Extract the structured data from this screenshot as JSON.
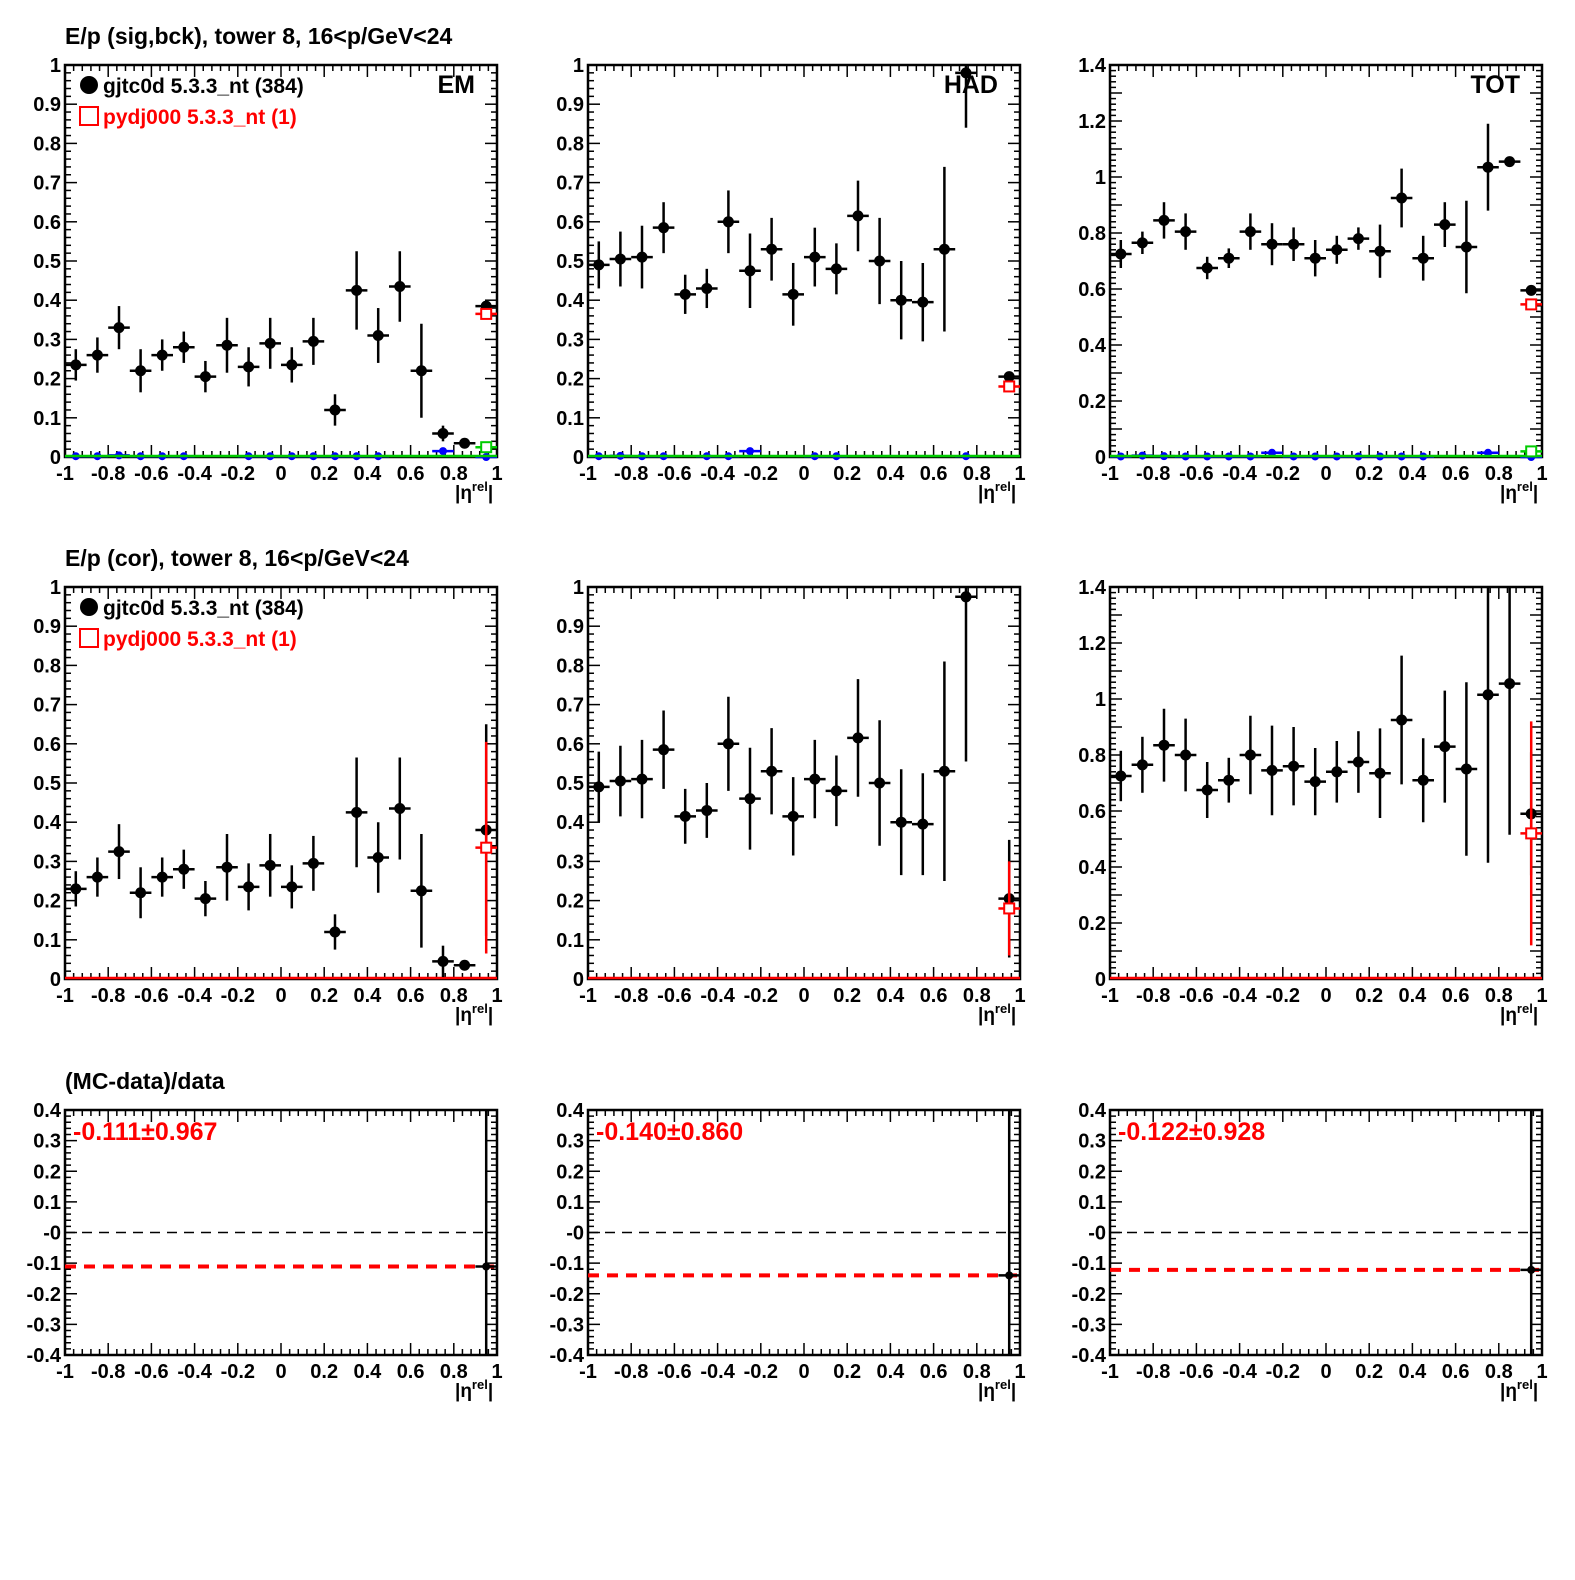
{
  "rows": [
    {
      "title": "E/p (sig,bck), tower 8, 16<p/GeV<24"
    },
    {
      "title": "E/p (cor), tower 8, 16<p/GeV<24"
    },
    {
      "title": "(MC-data)/data"
    }
  ],
  "legend": {
    "data_label": "gjtc0d 5.3.3_nt (384)",
    "mc_label": "pydj000 5.3.3_nt (1)"
  },
  "colors": {
    "data": "#000000",
    "mc": "#ff0000",
    "background": "#0000ff",
    "mc_background": "#00cc00"
  },
  "xaxis": {
    "label_main": "|η",
    "label_sup": "rel",
    "label_end": "|",
    "ticks": [
      "-1",
      "-0.8",
      "-0.6",
      "-0.4",
      "-0.2",
      "0",
      "0.2",
      "0.4",
      "0.6",
      "0.8",
      "1"
    ],
    "range": [
      -1,
      1
    ]
  },
  "chart_data": [
    {
      "type": "scatter",
      "row": 0,
      "col": 0,
      "label": "EM",
      "ylim": [
        0,
        1
      ],
      "yticks": [
        "0",
        "0.1",
        "0.2",
        "0.3",
        "0.4",
        "0.5",
        "0.6",
        "0.7",
        "0.8",
        "0.9",
        "1"
      ],
      "legend": true,
      "x": [
        -0.95,
        -0.85,
        -0.75,
        -0.65,
        -0.55,
        -0.45,
        -0.35,
        -0.25,
        -0.15,
        -0.05,
        0.05,
        0.15,
        0.25,
        0.35,
        0.45,
        0.55,
        0.65,
        0.75,
        0.85,
        0.95
      ],
      "data": {
        "y": [
          0.235,
          0.26,
          0.33,
          0.22,
          0.26,
          0.28,
          0.205,
          0.285,
          0.23,
          0.29,
          0.235,
          0.295,
          0.12,
          0.425,
          0.31,
          0.435,
          0.22,
          0.06,
          0.035,
          0.385
        ],
        "err": [
          0.04,
          0.045,
          0.055,
          0.055,
          0.04,
          0.04,
          0.04,
          0.07,
          0.05,
          0.065,
          0.045,
          0.06,
          0.04,
          0.1,
          0.07,
          0.09,
          0.12,
          0.02,
          0,
          0.005
        ]
      },
      "mc": {
        "x": 0.95,
        "y": 0.365,
        "err": 0.005
      },
      "background": {
        "y": [
          0.002,
          0.002,
          0.004,
          0.002,
          0.002,
          0.002,
          null,
          null,
          0.002,
          0.002,
          0.002,
          0.002,
          0.002,
          0.002,
          0.002,
          null,
          null,
          0.015,
          null,
          0.0
        ]
      },
      "mc_background": {
        "x": 0.95,
        "y": 0.025
      }
    },
    {
      "type": "scatter",
      "row": 0,
      "col": 1,
      "label": "HAD",
      "ylim": [
        0,
        1
      ],
      "yticks": [
        "0",
        "0.1",
        "0.2",
        "0.3",
        "0.4",
        "0.5",
        "0.6",
        "0.7",
        "0.8",
        "0.9",
        "1"
      ],
      "x": [
        -0.95,
        -0.85,
        -0.75,
        -0.65,
        -0.55,
        -0.45,
        -0.35,
        -0.25,
        -0.15,
        -0.05,
        0.05,
        0.15,
        0.25,
        0.35,
        0.45,
        0.55,
        0.65,
        0.75,
        0.85,
        0.95
      ],
      "data": {
        "y": [
          0.49,
          0.505,
          0.51,
          0.585,
          0.415,
          0.43,
          0.6,
          0.475,
          0.53,
          0.415,
          0.51,
          0.48,
          0.615,
          0.5,
          0.4,
          0.395,
          0.53,
          0.98,
          null,
          0.205
        ],
        "err": [
          0.06,
          0.07,
          0.08,
          0.065,
          0.05,
          0.05,
          0.08,
          0.095,
          0.08,
          0.08,
          0.075,
          0.065,
          0.09,
          0.11,
          0.1,
          0.1,
          0.21,
          0.14,
          null,
          0.005
        ]
      },
      "mc": {
        "x": 0.95,
        "y": 0.18,
        "err": 0.005
      },
      "background": {
        "y": [
          0.002,
          0.003,
          0.002,
          0.002,
          null,
          0.002,
          0.002,
          0.015,
          null,
          null,
          0.002,
          0.002,
          null,
          null,
          null,
          null,
          null,
          0.002,
          null,
          null
        ]
      },
      "mc_background": {
        "x": 0.95,
        "y": 0.0
      }
    },
    {
      "type": "scatter",
      "row": 0,
      "col": 2,
      "label": "TOT",
      "ylim": [
        0,
        1.4
      ],
      "yticks": [
        "0",
        "0.2",
        "0.4",
        "0.6",
        "0.8",
        "1",
        "1.2",
        "1.4"
      ],
      "x": [
        -0.95,
        -0.85,
        -0.75,
        -0.65,
        -0.55,
        -0.45,
        -0.35,
        -0.25,
        -0.15,
        -0.05,
        0.05,
        0.15,
        0.25,
        0.35,
        0.45,
        0.55,
        0.65,
        0.75,
        0.85,
        0.95
      ],
      "data": {
        "y": [
          0.725,
          0.765,
          0.845,
          0.805,
          0.675,
          0.71,
          0.805,
          0.76,
          0.76,
          0.71,
          0.74,
          0.78,
          0.735,
          0.925,
          0.71,
          0.83,
          0.75,
          1.035,
          1.055,
          0.595
        ],
        "err": [
          0.05,
          0.04,
          0.065,
          0.065,
          0.04,
          0.035,
          0.065,
          0.075,
          0.06,
          0.065,
          0.05,
          0.04,
          0.095,
          0.105,
          0.08,
          0.08,
          0.165,
          0.155,
          0.005,
          0.005
        ]
      },
      "mc": {
        "x": 0.95,
        "y": 0.545,
        "err": 0.005
      },
      "background": {
        "y": [
          0.002,
          0.005,
          0.003,
          0.002,
          0.002,
          0.002,
          0.002,
          0.015,
          0.002,
          0.002,
          0.002,
          0.002,
          0.002,
          0.002,
          0.002,
          null,
          null,
          0.015,
          null,
          0.0
        ]
      },
      "mc_background": {
        "x": 0.95,
        "y": 0.02
      }
    },
    {
      "type": "scatter",
      "row": 1,
      "col": 0,
      "ylim": [
        0,
        1
      ],
      "yticks": [
        "0",
        "0.1",
        "0.2",
        "0.3",
        "0.4",
        "0.5",
        "0.6",
        "0.7",
        "0.8",
        "0.9",
        "1"
      ],
      "legend": true,
      "x": [
        -0.95,
        -0.85,
        -0.75,
        -0.65,
        -0.55,
        -0.45,
        -0.35,
        -0.25,
        -0.15,
        -0.05,
        0.05,
        0.15,
        0.25,
        0.35,
        0.45,
        0.55,
        0.65,
        0.75,
        0.85,
        0.95
      ],
      "data": {
        "y": [
          0.23,
          0.26,
          0.325,
          0.22,
          0.26,
          0.28,
          0.205,
          0.285,
          0.235,
          0.29,
          0.235,
          0.295,
          0.12,
          0.425,
          0.31,
          0.435,
          0.225,
          0.045,
          0.035,
          0.38
        ],
        "err": [
          0.045,
          0.05,
          0.07,
          0.065,
          0.05,
          0.05,
          0.045,
          0.085,
          0.06,
          0.08,
          0.055,
          0.07,
          0.045,
          0.14,
          0.09,
          0.13,
          0.145,
          0.04,
          0.01,
          0.27
        ]
      },
      "mc": {
        "x": 0.95,
        "y": 0.335,
        "err": 0.27
      }
    },
    {
      "type": "scatter",
      "row": 1,
      "col": 1,
      "ylim": [
        0,
        1
      ],
      "yticks": [
        "0",
        "0.1",
        "0.2",
        "0.3",
        "0.4",
        "0.5",
        "0.6",
        "0.7",
        "0.8",
        "0.9",
        "1"
      ],
      "x": [
        -0.95,
        -0.85,
        -0.75,
        -0.65,
        -0.55,
        -0.45,
        -0.35,
        -0.25,
        -0.15,
        -0.05,
        0.05,
        0.15,
        0.25,
        0.35,
        0.45,
        0.55,
        0.65,
        0.75,
        0.85,
        0.95
      ],
      "data": {
        "y": [
          0.49,
          0.505,
          0.51,
          0.585,
          0.415,
          0.43,
          0.6,
          0.46,
          0.53,
          0.415,
          0.51,
          0.48,
          0.615,
          0.5,
          0.4,
          0.395,
          0.53,
          0.975,
          null,
          0.205
        ],
        "err": [
          0.09,
          0.09,
          0.1,
          0.1,
          0.07,
          0.07,
          0.12,
          0.13,
          0.11,
          0.1,
          0.1,
          0.09,
          0.15,
          0.16,
          0.135,
          0.13,
          0.28,
          0.42,
          null,
          0.15
        ]
      },
      "mc": {
        "x": 0.95,
        "y": 0.18,
        "err": 0.12
      }
    },
    {
      "type": "scatter",
      "row": 1,
      "col": 2,
      "ylim": [
        0,
        1.4
      ],
      "yticks": [
        "0",
        "0.2",
        "0.4",
        "0.6",
        "0.8",
        "1",
        "1.2",
        "1.4"
      ],
      "x": [
        -0.95,
        -0.85,
        -0.75,
        -0.65,
        -0.55,
        -0.45,
        -0.35,
        -0.25,
        -0.15,
        -0.05,
        0.05,
        0.15,
        0.25,
        0.35,
        0.45,
        0.55,
        0.65,
        0.75,
        0.85,
        0.95
      ],
      "data": {
        "y": [
          0.725,
          0.765,
          0.835,
          0.8,
          0.675,
          0.71,
          0.8,
          0.745,
          0.76,
          0.705,
          0.74,
          0.775,
          0.735,
          0.925,
          0.71,
          0.83,
          0.75,
          1.015,
          1.055,
          0.59
        ],
        "err": [
          0.09,
          0.1,
          0.13,
          0.13,
          0.1,
          0.08,
          0.14,
          0.16,
          0.14,
          0.12,
          0.11,
          0.11,
          0.16,
          0.23,
          0.15,
          0.2,
          0.31,
          0.6,
          0.54,
          0.22
        ]
      },
      "mc": {
        "x": 0.95,
        "y": 0.52,
        "err": 0.4
      }
    },
    {
      "type": "scatter",
      "row": 2,
      "col": 0,
      "ylim": [
        -0.4,
        0.4
      ],
      "yticks": [
        "-0.4",
        "-0.3",
        "-0.2",
        "-0.1",
        "-0",
        "0.1",
        "0.2",
        "0.3",
        "0.4"
      ],
      "ratio": {
        "x": 0.95,
        "y": -0.111,
        "err": 0.967
      },
      "mean_text": "-0.111±0.967",
      "mean": -0.111
    },
    {
      "type": "scatter",
      "row": 2,
      "col": 1,
      "ylim": [
        -0.4,
        0.4
      ],
      "yticks": [
        "-0.4",
        "-0.3",
        "-0.2",
        "-0.1",
        "-0",
        "0.1",
        "0.2",
        "0.3",
        "0.4"
      ],
      "ratio": {
        "x": 0.95,
        "y": -0.14,
        "err": 0.86
      },
      "mean_text": "-0.140±0.860",
      "mean": -0.14
    },
    {
      "type": "scatter",
      "row": 2,
      "col": 2,
      "ylim": [
        -0.4,
        0.4
      ],
      "yticks": [
        "-0.4",
        "-0.3",
        "-0.2",
        "-0.1",
        "-0",
        "0.1",
        "0.2",
        "0.3",
        "0.4"
      ],
      "ratio": {
        "x": 0.95,
        "y": -0.122,
        "err": 0.928
      },
      "mean_text": "-0.122±0.928",
      "mean": -0.122
    }
  ]
}
